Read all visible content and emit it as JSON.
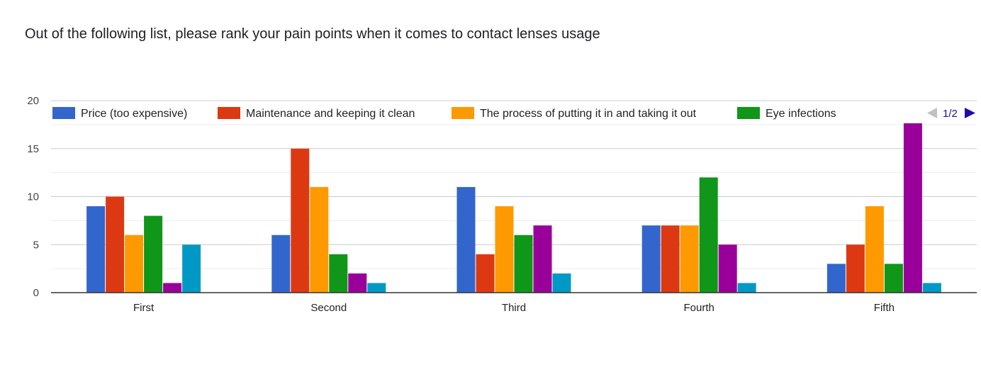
{
  "chart_data": {
    "type": "bar",
    "title": "Out of the following list, please rank your pain points when it comes to contact lenses usage",
    "categories": [
      "First",
      "Second",
      "Third",
      "Fourth",
      "Fifth"
    ],
    "ylim": [
      0,
      20
    ],
    "yticks": [
      0,
      5,
      10,
      15,
      20
    ],
    "grid": true,
    "legend_position": "top",
    "legend_pager": "1/2",
    "series": [
      {
        "name": "Price (too expensive)",
        "color": "#3366cc",
        "values": [
          9,
          6,
          11,
          7,
          3
        ]
      },
      {
        "name": "Maintenance and keeping it clean",
        "color": "#dc3912",
        "values": [
          10,
          15,
          4,
          7,
          5
        ]
      },
      {
        "name": "The process of putting it in and taking it out",
        "color": "#ff9900",
        "values": [
          6,
          11,
          9,
          7,
          9
        ]
      },
      {
        "name": "Eye infections",
        "color": "#109618",
        "values": [
          8,
          4,
          6,
          12,
          3
        ]
      },
      {
        "color": "#990099",
        "values": [
          1,
          2,
          7,
          5,
          18
        ]
      },
      {
        "color": "#0099c6",
        "values": [
          5,
          1,
          2,
          1,
          1
        ]
      }
    ]
  }
}
